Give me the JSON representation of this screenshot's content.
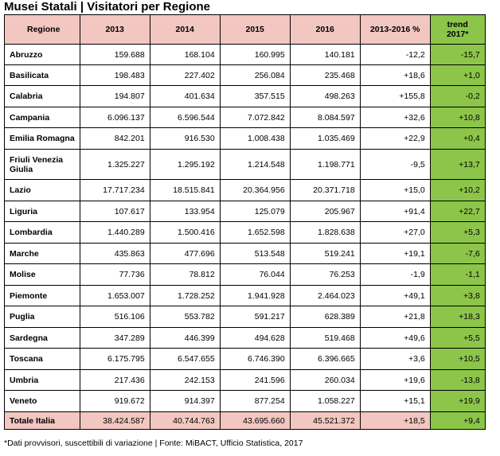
{
  "title": "Musei Statali | Visitatori per Regione",
  "headers": [
    "Regione",
    "2013",
    "2014",
    "2015",
    "2016",
    "2013-2016 %",
    "trend 2017*"
  ],
  "rows": [
    {
      "region": "Abruzzo",
      "y2013": "159.688",
      "y2014": "168.104",
      "y2015": "160.995",
      "y2016": "140.181",
      "delta": "-12,2",
      "trend": "-15,7"
    },
    {
      "region": "Basilicata",
      "y2013": "198.483",
      "y2014": "227.402",
      "y2015": "256.084",
      "y2016": "235.468",
      "delta": "+18,6",
      "trend": "+1,0"
    },
    {
      "region": "Calabria",
      "y2013": "194.807",
      "y2014": "401.634",
      "y2015": "357.515",
      "y2016": "498.263",
      "delta": "+155,8",
      "trend": "-0,2"
    },
    {
      "region": "Campania",
      "y2013": "6.096.137",
      "y2014": "6.596.544",
      "y2015": "7.072.842",
      "y2016": "8.084.597",
      "delta": "+32,6",
      "trend": "+10,8"
    },
    {
      "region": "Emilia Romagna",
      "y2013": "842.201",
      "y2014": "916.530",
      "y2015": "1.008.438",
      "y2016": "1.035.469",
      "delta": "+22,9",
      "trend": "+0,4"
    },
    {
      "region": "Friuli Venezia Giulia",
      "y2013": "1.325.227",
      "y2014": "1.295.192",
      "y2015": "1.214.548",
      "y2016": "1.198.771",
      "delta": "-9,5",
      "trend": "+13,7"
    },
    {
      "region": "Lazio",
      "y2013": "17.717.234",
      "y2014": "18.515.841",
      "y2015": "20.364.956",
      "y2016": "20.371.718",
      "delta": "+15,0",
      "trend": "+10,2"
    },
    {
      "region": "Liguria",
      "y2013": "107.617",
      "y2014": "133.954",
      "y2015": "125.079",
      "y2016": "205.967",
      "delta": "+91,4",
      "trend": "+22,7"
    },
    {
      "region": "Lombardia",
      "y2013": "1.440.289",
      "y2014": "1.500.416",
      "y2015": "1.652.598",
      "y2016": "1.828.638",
      "delta": "+27,0",
      "trend": "+5,3"
    },
    {
      "region": "Marche",
      "y2013": "435.863",
      "y2014": "477.696",
      "y2015": "513.548",
      "y2016": "519.241",
      "delta": "+19,1",
      "trend": "-7,6"
    },
    {
      "region": "Molise",
      "y2013": "77.736",
      "y2014": "78.812",
      "y2015": "76.044",
      "y2016": "76.253",
      "delta": "-1,9",
      "trend": "-1,1"
    },
    {
      "region": "Piemonte",
      "y2013": "1.653.007",
      "y2014": "1.728.252",
      "y2015": "1.941.928",
      "y2016": "2.464.023",
      "delta": "+49,1",
      "trend": "+3,8"
    },
    {
      "region": "Puglia",
      "y2013": "516.106",
      "y2014": "553.782",
      "y2015": "591.217",
      "y2016": "628.389",
      "delta": "+21,8",
      "trend": "+18,3"
    },
    {
      "region": "Sardegna",
      "y2013": "347.289",
      "y2014": "446.399",
      "y2015": "494.628",
      "y2016": "519.468",
      "delta": "+49,6",
      "trend": "+5,5"
    },
    {
      "region": "Toscana",
      "y2013": "6.175.795",
      "y2014": "6.547.655",
      "y2015": "6.746.390",
      "y2016": "6.396.665",
      "delta": "+3,6",
      "trend": "+10,5"
    },
    {
      "region": "Umbria",
      "y2013": "217.436",
      "y2014": "242.153",
      "y2015": "241.596",
      "y2016": "260.034",
      "delta": "+19,6",
      "trend": "-13,8"
    },
    {
      "region": "Veneto",
      "y2013": "919.672",
      "y2014": "914.397",
      "y2015": "877.254",
      "y2016": "1.058.227",
      "delta": "+15,1",
      "trend": "+19,9"
    }
  ],
  "total": {
    "region": "Totale Italia",
    "y2013": "38.424.587",
    "y2014": "40.744.763",
    "y2015": "43.695.660",
    "y2016": "45.521.372",
    "delta": "+18,5",
    "trend": "+9,4"
  },
  "footnote": "*Dati provvisori, suscettibili di variazione | Fonte: MiBACT, Ufficio Statistica, 2017",
  "colors": {
    "header_bg": "#f2c6c1",
    "trend_bg": "#8cc54a"
  }
}
